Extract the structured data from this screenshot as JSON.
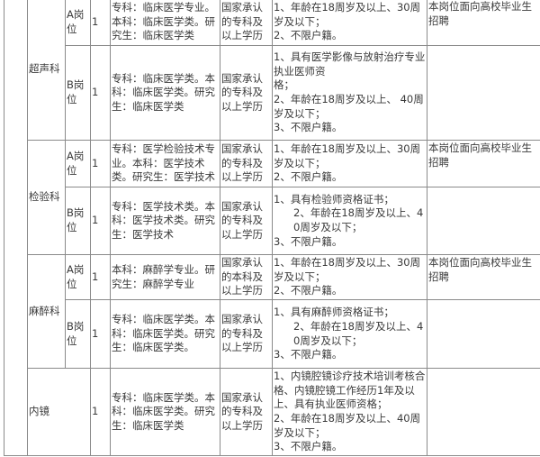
{
  "rows": [
    {
      "dept": "超声科",
      "post": "A岗位",
      "count": "1",
      "major": "专科：临床医学专业。本科：临床医学类。研究生：临床医学类",
      "edu": "国家承认的专科及以上学历",
      "req": [
        "1、年龄在18周岁及以上、30周岁及以下；",
        "2、不限户籍。"
      ],
      "note": "本岗位面向高校毕业生招聘"
    },
    {
      "post": "B岗位",
      "count": "1",
      "major": "专科：临床医学类。本科：临床医学类。研究生：临床医学类",
      "edu": "国家承认的专科及以上学历",
      "req": [
        "1、具有医学影像与放射治疗专业执业医师资",
        "格；",
        "2、年龄在18周岁及以上、 40周岁及以下；",
        "3、不限户籍。"
      ],
      "note": ""
    },
    {
      "dept": "检验科",
      "post": "A岗位",
      "count": "1",
      "major": "专科：医学检验技术专业。本科：医学技术类。研究生：医学技术",
      "edu": "国家承认的专科及以上学历",
      "req": [
        "1、年龄在18周岁及以上、30周岁及以下；",
        "2、不限户籍。"
      ],
      "note": "本岗位面向高校毕业生招聘"
    },
    {
      "post": "B岗位",
      "count": "1",
      "major": "专科：医学技术类。本科：医学技术类。研究生：医学技术",
      "edu": "国家承认的专科及以上学历",
      "req": [
        "1、具有检验师资格证书；",
        "2、年龄在18周岁及以上、40周岁及以下；",
        "3、不限户籍。"
      ],
      "note": ""
    },
    {
      "dept": "麻醉科",
      "post": "A岗位",
      "count": "1",
      "major": "本科：麻醉学专业。研究生：麻醉学专业",
      "edu": "国家承认的本科及以上学历",
      "req": [
        "1、年龄在18周岁及以上、30周岁及以下；",
        "2、不限户籍。"
      ],
      "note": "本岗位面向高校毕业生招聘"
    },
    {
      "post": "B岗位",
      "count": "1",
      "major": "专科：临床医学类。本科：临床医学类。研究生：临床医学类。",
      "edu": "国家承认的专科及以上学历",
      "req": [
        "1、具有麻醉师资格证书；",
        "2、年龄在18周岁及以上、40周岁及以下；",
        "3、不限户籍。"
      ],
      "note": ""
    },
    {
      "dept": "内镜",
      "count": "1",
      "major": "专科：临床医学类。本科：临床医学类。研究生：临床医学类",
      "edu": "国家承认的专科及以上学历",
      "req": [
        "1、内镜腔镜诊疗技术培训考核合格、内镜腔镜工作经历1年及以上、具有执业医师资格；",
        "2、年龄在18周岁及以上、40周岁及以下；",
        "3、不限户籍。"
      ],
      "note": ""
    }
  ]
}
